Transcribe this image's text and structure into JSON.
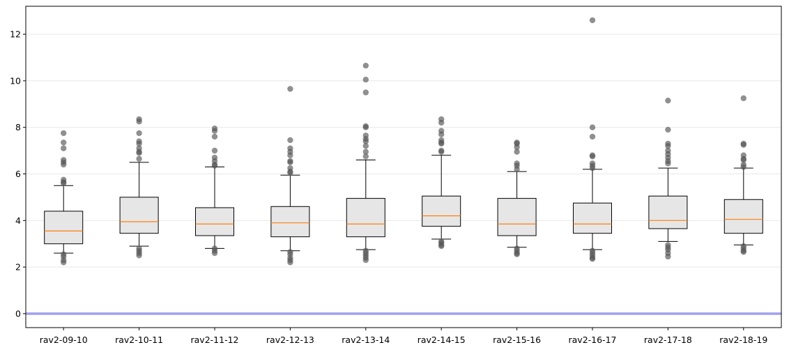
{
  "chart_data": {
    "type": "box",
    "title": "",
    "xlabel": "",
    "ylabel": "",
    "ylim": [
      -0.6,
      13.2
    ],
    "yticks": [
      0,
      2,
      4,
      6,
      8,
      10,
      12
    ],
    "grid": "horizontal",
    "reference_line": {
      "y": 0,
      "color": "#a0a0f0"
    },
    "box_fill": "#e6e6e6",
    "median_color": "#ff7f0e",
    "outlier_color": "#555555",
    "categories": [
      "rav2-09-10",
      "rav2-10-11",
      "rav2-11-12",
      "rav2-12-13",
      "rav2-13-14",
      "rav2-14-15",
      "rav2-15-16",
      "rav2-16-17",
      "rav2-17-18",
      "rav2-18-19"
    ],
    "boxes": [
      {
        "label": "rav2-09-10",
        "whislo": 2.6,
        "q1": 3.0,
        "med": 3.55,
        "q3": 4.4,
        "whishi": 5.5,
        "fliers": [
          7.75,
          7.35,
          7.1,
          6.6,
          6.5,
          6.4,
          5.75,
          5.65,
          5.6,
          2.55,
          2.45,
          2.3,
          2.2
        ]
      },
      {
        "label": "rav2-10-11",
        "whislo": 2.9,
        "q1": 3.45,
        "med": 3.95,
        "q3": 5.0,
        "whishi": 6.5,
        "fliers": [
          8.35,
          8.25,
          7.75,
          7.4,
          7.3,
          7.1,
          6.95,
          6.9,
          6.65,
          2.8,
          2.7,
          2.6,
          2.5
        ]
      },
      {
        "label": "rav2-11-12",
        "whislo": 2.8,
        "q1": 3.35,
        "med": 3.85,
        "q3": 4.55,
        "whishi": 6.3,
        "fliers": [
          7.95,
          7.85,
          7.6,
          7.0,
          6.7,
          6.55,
          6.4,
          6.35,
          2.8,
          2.7,
          2.6
        ]
      },
      {
        "label": "rav2-12-13",
        "whislo": 2.7,
        "q1": 3.3,
        "med": 3.9,
        "q3": 4.6,
        "whishi": 5.95,
        "fliers": [
          9.65,
          7.45,
          7.1,
          6.95,
          6.8,
          6.55,
          6.5,
          6.25,
          6.1,
          6.05,
          2.65,
          2.55,
          2.4,
          2.3,
          2.2
        ]
      },
      {
        "label": "rav2-13-14",
        "whislo": 2.75,
        "q1": 3.3,
        "med": 3.85,
        "q3": 4.95,
        "whishi": 6.6,
        "fliers": [
          10.65,
          10.05,
          9.5,
          8.05,
          8.0,
          7.65,
          7.5,
          7.4,
          7.2,
          6.95,
          6.75,
          2.7,
          2.6,
          2.5,
          2.4,
          2.3
        ]
      },
      {
        "label": "rav2-14-15",
        "whislo": 3.2,
        "q1": 3.75,
        "med": 4.2,
        "q3": 5.05,
        "whishi": 6.8,
        "fliers": [
          8.35,
          8.2,
          7.85,
          7.7,
          7.45,
          7.35,
          7.3,
          7.0,
          6.95,
          3.1,
          3.05,
          2.95,
          2.9
        ]
      },
      {
        "label": "rav2-15-16",
        "whislo": 2.85,
        "q1": 3.35,
        "med": 3.85,
        "q3": 4.95,
        "whishi": 6.1,
        "fliers": [
          7.35,
          7.3,
          7.15,
          6.95,
          6.45,
          6.35,
          6.2,
          2.8,
          2.7,
          2.6,
          2.55
        ]
      },
      {
        "label": "rav2-16-17",
        "whislo": 2.75,
        "q1": 3.45,
        "med": 3.85,
        "q3": 4.75,
        "whishi": 6.2,
        "fliers": [
          12.6,
          8.0,
          7.6,
          6.8,
          6.75,
          6.45,
          6.35,
          6.25,
          2.7,
          2.6,
          2.5,
          2.4,
          2.35
        ]
      },
      {
        "label": "rav2-17-18",
        "whislo": 3.1,
        "q1": 3.65,
        "med": 4.0,
        "q3": 5.05,
        "whishi": 6.25,
        "fliers": [
          9.15,
          7.9,
          7.3,
          7.2,
          7.0,
          6.85,
          6.7,
          6.55,
          6.45,
          2.95,
          2.85,
          2.75,
          2.6,
          2.45
        ]
      },
      {
        "label": "rav2-18-19",
        "whislo": 2.95,
        "q1": 3.45,
        "med": 4.05,
        "q3": 4.9,
        "whishi": 6.25,
        "fliers": [
          9.25,
          7.3,
          7.25,
          6.8,
          6.65,
          6.6,
          6.4,
          6.3,
          2.9,
          2.8,
          2.7,
          2.65
        ]
      }
    ]
  }
}
